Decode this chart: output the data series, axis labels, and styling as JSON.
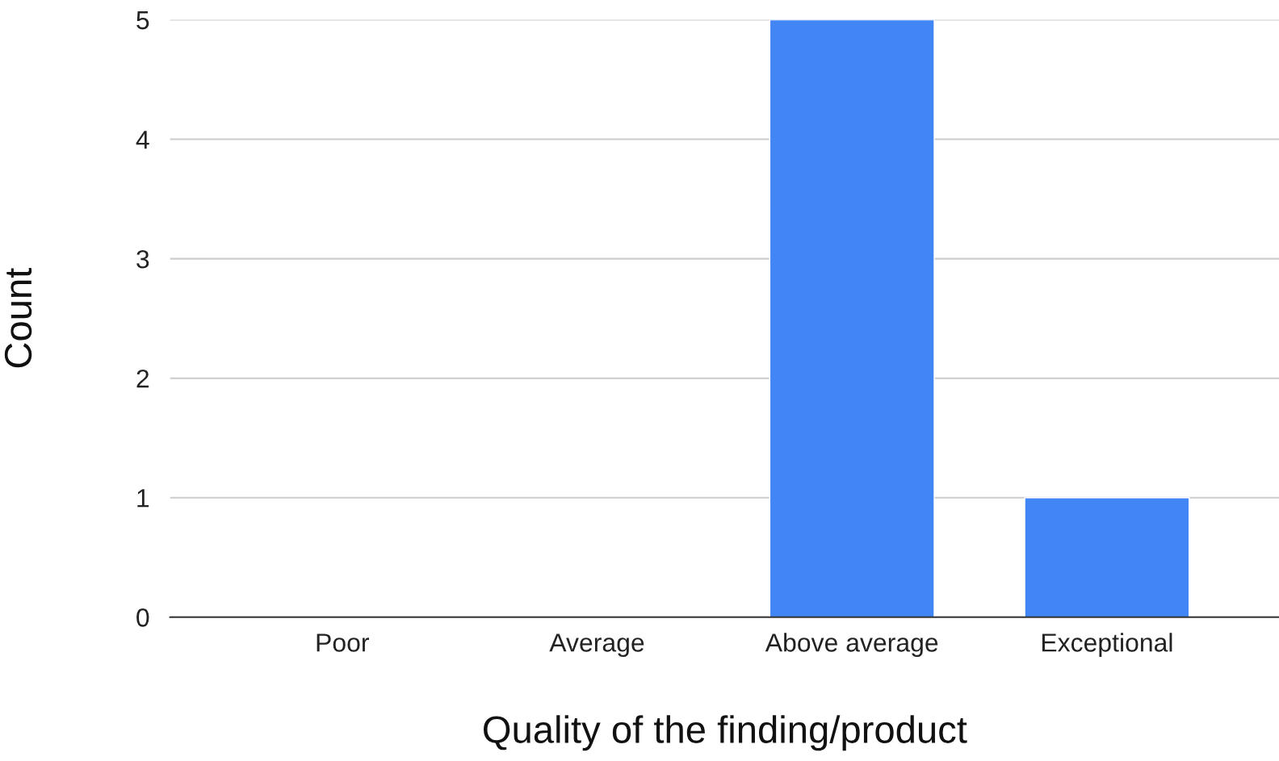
{
  "chart_data": {
    "type": "bar",
    "xlabel": "Quality of the finding/product",
    "ylabel": "Count",
    "categories": [
      "Poor",
      "Average",
      "Above average",
      "Exceptional"
    ],
    "values": [
      0,
      0,
      5,
      1
    ],
    "color": "#4285f4",
    "ylim": [
      0,
      5
    ],
    "yticks": [
      0,
      1,
      2,
      3,
      4,
      5
    ],
    "grid": "y"
  }
}
